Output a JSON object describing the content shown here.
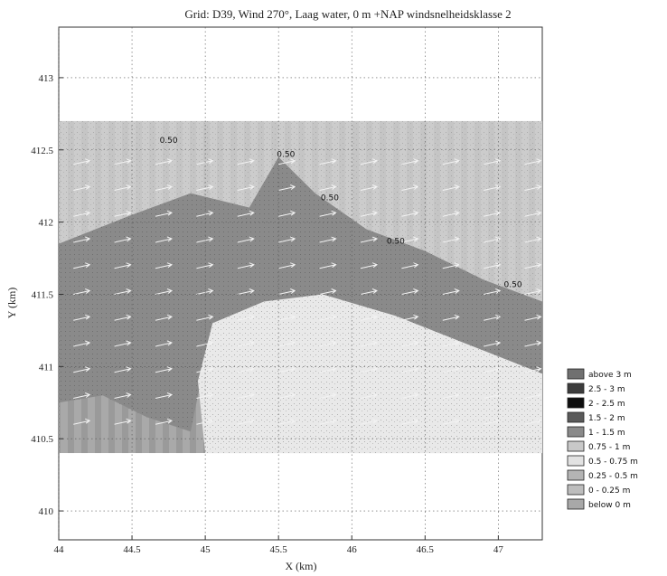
{
  "chart_data": {
    "type": "heatmap",
    "title": "Grid: D39, Wind 270°, Laag water, 0 m +NAP windsnelheidsklasse 2",
    "xlabel": "X (km)",
    "ylabel": "Y (km)",
    "xlim": [
      44,
      47.3
    ],
    "ylim": [
      409.8,
      413.35
    ],
    "x_ticks": [
      "44",
      "44.5",
      "45",
      "45.5",
      "46",
      "46.5",
      "47"
    ],
    "y_ticks": [
      "410",
      "410.5",
      "411",
      "411.5",
      "412",
      "412.5",
      "413"
    ],
    "x_tick_values": [
      44,
      44.5,
      45,
      45.5,
      46,
      46.5,
      47
    ],
    "y_tick_values": [
      410,
      410.5,
      411,
      411.5,
      412,
      412.5,
      413
    ],
    "grid": true,
    "data_extent": {
      "x": [
        44,
        47.3
      ],
      "y": [
        410.4,
        412.7
      ]
    },
    "contour_labels": [
      {
        "text": "0.50",
        "x": 44.75,
        "y": 412.55
      },
      {
        "text": "0.50",
        "x": 45.55,
        "y": 412.45
      },
      {
        "text": "0.50",
        "x": 45.85,
        "y": 412.15
      },
      {
        "text": "0.50",
        "x": 46.3,
        "y": 411.85
      },
      {
        "text": "0.50",
        "x": 47.1,
        "y": 411.55
      }
    ],
    "legend_position": "right",
    "legend": [
      {
        "label": "above 3 m",
        "color": "#707070"
      },
      {
        "label": "2.5 - 3 m",
        "color": "#3c3c3c"
      },
      {
        "label": "2 - 2.5 m",
        "color": "#0e0e0e"
      },
      {
        "label": "1.5 - 2 m",
        "color": "#5a5a5a"
      },
      {
        "label": "1 - 1.5 m",
        "color": "#8a8a8a"
      },
      {
        "label": "0.75 - 1 m",
        "color": "#c8c8c8"
      },
      {
        "label": "0.5 - 0.75 m",
        "color": "#e2e2e2"
      },
      {
        "label": "0.25 - 0.5 m",
        "color": "#b4b4b4"
      },
      {
        "label": "0 - 0.25 m",
        "color": "#bdbdbd"
      },
      {
        "label": "below 0 m",
        "color": "#a8a8a8"
      }
    ]
  }
}
